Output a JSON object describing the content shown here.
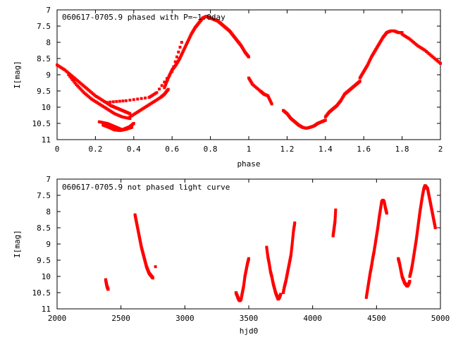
{
  "chart_data": [
    {
      "type": "scatter",
      "title": "060617-0705.9 phased with P=~1.0day",
      "xlabel": "phase",
      "ylabel": "I[mag]",
      "xlim": [
        0,
        2
      ],
      "ylim": [
        11,
        7
      ],
      "y_inverted": true,
      "x_ticks": [
        {
          "value": 0,
          "label": "0"
        },
        {
          "value": 0.2,
          "label": "0.2"
        },
        {
          "value": 0.4,
          "label": "0.4"
        },
        {
          "value": 0.6,
          "label": "0.6"
        },
        {
          "value": 0.8,
          "label": "0.8"
        },
        {
          "value": 1.0,
          "label": "1"
        },
        {
          "value": 1.2,
          "label": "1.2"
        },
        {
          "value": 1.4,
          "label": "1.4"
        },
        {
          "value": 1.6,
          "label": "1.6"
        },
        {
          "value": 1.8,
          "label": "1.8"
        },
        {
          "value": 2.0,
          "label": "2"
        }
      ],
      "y_ticks": [
        {
          "value": 7,
          "label": "7"
        },
        {
          "value": 7.5,
          "label": "7.5"
        },
        {
          "value": 8,
          "label": "8"
        },
        {
          "value": 8.5,
          "label": "8.5"
        },
        {
          "value": 9,
          "label": "9"
        },
        {
          "value": 9.5,
          "label": "9.5"
        },
        {
          "value": 10,
          "label": "10"
        },
        {
          "value": 10.5,
          "label": "10.5"
        },
        {
          "value": 11,
          "label": "11"
        }
      ],
      "color": "#ff0000",
      "series_segments": [
        {
          "x": [
            0.0,
            0.04,
            0.08,
            0.12,
            0.16,
            0.2,
            0.24,
            0.28,
            0.3,
            0.32,
            0.34,
            0.36,
            0.38
          ],
          "y": [
            8.7,
            8.85,
            9.05,
            9.25,
            9.45,
            9.65,
            9.8,
            9.95,
            10.0,
            10.05,
            10.1,
            10.15,
            10.2
          ]
        },
        {
          "x": [
            0.06,
            0.1,
            0.14,
            0.18,
            0.22,
            0.26,
            0.3,
            0.34,
            0.38
          ],
          "y": [
            9.0,
            9.3,
            9.55,
            9.75,
            9.9,
            10.05,
            10.2,
            10.3,
            10.35
          ]
        },
        {
          "x": [
            0.22,
            0.26,
            0.28,
            0.3,
            0.32,
            0.34,
            0.36,
            0.38,
            0.4
          ],
          "y": [
            10.45,
            10.5,
            10.55,
            10.6,
            10.65,
            10.7,
            10.65,
            10.6,
            10.5
          ]
        },
        {
          "x": [
            0.24,
            0.27,
            0.3,
            0.33,
            0.36,
            0.39
          ],
          "y": [
            10.55,
            10.62,
            10.7,
            10.72,
            10.68,
            10.62
          ]
        },
        {
          "x": [
            0.38,
            0.42,
            0.46,
            0.5,
            0.54,
            0.56,
            0.58
          ],
          "y": [
            10.3,
            10.15,
            10.0,
            9.85,
            9.7,
            9.6,
            9.45
          ]
        },
        {
          "x": [
            0.56,
            0.58,
            0.6,
            0.62,
            0.64,
            0.66,
            0.68,
            0.7,
            0.72,
            0.74,
            0.76,
            0.78
          ],
          "y": [
            9.4,
            9.1,
            8.85,
            8.7,
            8.5,
            8.25,
            8.0,
            7.75,
            7.55,
            7.4,
            7.25,
            7.2
          ]
        },
        {
          "x": [
            0.78,
            0.8,
            0.82,
            0.84,
            0.86,
            0.88,
            0.9,
            0.92,
            0.94,
            0.96,
            0.98,
            1.0
          ],
          "y": [
            7.2,
            7.25,
            7.3,
            7.35,
            7.45,
            7.55,
            7.65,
            7.8,
            7.95,
            8.1,
            8.3,
            8.45
          ]
        },
        {
          "x": [
            0.26,
            0.36,
            0.48,
            0.52,
            0.6,
            0.65
          ],
          "y": [
            9.85,
            9.8,
            9.7,
            9.55,
            8.9,
            8.0
          ]
        },
        {
          "x": [
            1.0,
            1.02,
            1.06,
            1.08,
            1.1,
            1.12
          ],
          "y": [
            9.1,
            9.3,
            9.5,
            9.6,
            9.65,
            9.9
          ]
        },
        {
          "x": [
            1.18,
            1.2,
            1.22,
            1.24,
            1.26,
            1.28,
            1.3,
            1.32,
            1.34,
            1.36,
            1.38,
            1.4
          ],
          "y": [
            10.1,
            10.2,
            10.35,
            10.45,
            10.55,
            10.62,
            10.65,
            10.62,
            10.58,
            10.5,
            10.45,
            10.4
          ]
        },
        {
          "x": [
            1.4,
            1.42,
            1.44,
            1.46,
            1.48,
            1.5,
            1.52,
            1.54,
            1.56,
            1.58
          ],
          "y": [
            10.3,
            10.15,
            10.05,
            9.95,
            9.8,
            9.6,
            9.5,
            9.4,
            9.3,
            9.2
          ]
        },
        {
          "x": [
            1.58,
            1.6,
            1.62,
            1.64,
            1.66,
            1.68,
            1.7,
            1.72,
            1.74,
            1.76,
            1.78,
            1.8
          ],
          "y": [
            9.1,
            8.9,
            8.7,
            8.45,
            8.25,
            8.05,
            7.85,
            7.7,
            7.65,
            7.65,
            7.7,
            7.7
          ]
        },
        {
          "x": [
            1.8,
            1.84,
            1.88,
            1.92,
            1.96,
            2.0
          ],
          "y": [
            7.75,
            7.9,
            8.1,
            8.25,
            8.45,
            8.65
          ]
        }
      ]
    },
    {
      "type": "scatter",
      "title": "060617-0705.9 not phased light curve",
      "xlabel": "hjd0",
      "ylabel": "I[mag]",
      "xlim": [
        2000,
        5000
      ],
      "ylim": [
        11,
        7
      ],
      "y_inverted": true,
      "x_ticks": [
        {
          "value": 2000,
          "label": "2000"
        },
        {
          "value": 2500,
          "label": "2500"
        },
        {
          "value": 3000,
          "label": "3000"
        },
        {
          "value": 3500,
          "label": "3500"
        },
        {
          "value": 4000,
          "label": "4000"
        },
        {
          "value": 4500,
          "label": "4500"
        },
        {
          "value": 5000,
          "label": "5000"
        }
      ],
      "y_ticks": [
        {
          "value": 7,
          "label": "7"
        },
        {
          "value": 7.5,
          "label": "7.5"
        },
        {
          "value": 8,
          "label": "8"
        },
        {
          "value": 8.5,
          "label": "8.5"
        },
        {
          "value": 9,
          "label": "9"
        },
        {
          "value": 9.5,
          "label": "9.5"
        },
        {
          "value": 10,
          "label": "10"
        },
        {
          "value": 10.5,
          "label": "10.5"
        },
        {
          "value": 11,
          "label": "11"
        }
      ],
      "color": "#ff0000",
      "series_segments": [
        {
          "x": [
            2380,
            2385,
            2390,
            2395,
            2400
          ],
          "y": [
            10.1,
            10.2,
            10.3,
            10.35,
            10.4
          ]
        },
        {
          "x": [
            2610,
            2620,
            2630,
            2640,
            2650,
            2660,
            2670,
            2680,
            2690,
            2700,
            2710,
            2720,
            2730,
            2740,
            2750
          ],
          "y": [
            8.1,
            8.3,
            8.5,
            8.7,
            8.9,
            9.1,
            9.25,
            9.4,
            9.55,
            9.7,
            9.8,
            9.9,
            9.95,
            10.0,
            10.05
          ]
        },
        {
          "x": [
            2770
          ],
          "y": [
            9.7
          ]
        },
        {
          "x": [
            3400,
            3410,
            3420,
            3430,
            3440,
            3450,
            3460,
            3470,
            3480,
            3490,
            3500
          ],
          "y": [
            10.5,
            10.6,
            10.7,
            10.75,
            10.7,
            10.5,
            10.3,
            10.0,
            9.8,
            9.6,
            9.45
          ]
        },
        {
          "x": [
            3640,
            3650,
            3660,
            3670,
            3680,
            3690,
            3700,
            3710,
            3720,
            3730,
            3740,
            3750
          ],
          "y": [
            9.1,
            9.4,
            9.6,
            9.85,
            10.0,
            10.2,
            10.35,
            10.5,
            10.6,
            10.7,
            10.65,
            10.55
          ]
        },
        {
          "x": [
            3770,
            3780,
            3790,
            3800,
            3810,
            3820,
            3830,
            3840,
            3850,
            3860
          ],
          "y": [
            10.5,
            10.3,
            10.15,
            9.95,
            9.75,
            9.55,
            9.35,
            9.0,
            8.6,
            8.35
          ]
        },
        {
          "x": [
            4160,
            4165,
            4170,
            4175,
            4180
          ],
          "y": [
            8.75,
            8.6,
            8.45,
            8.3,
            7.95
          ]
        },
        {
          "x": [
            4420,
            4430,
            4440,
            4450,
            4460,
            4470,
            4480,
            4490,
            4500,
            4510,
            4520,
            4530,
            4540,
            4550,
            4560,
            4570,
            4580
          ],
          "y": [
            10.65,
            10.4,
            10.15,
            9.9,
            9.7,
            9.45,
            9.25,
            9.0,
            8.75,
            8.5,
            8.2,
            7.95,
            7.7,
            7.65,
            7.7,
            7.9,
            8.05
          ]
        },
        {
          "x": [
            4670,
            4680,
            4690,
            4700,
            4710,
            4720,
            4730,
            4740,
            4750,
            4760
          ],
          "y": [
            9.45,
            9.6,
            9.8,
            10.0,
            10.1,
            10.2,
            10.25,
            10.3,
            10.25,
            10.15
          ]
        },
        {
          "x": [
            4760,
            4770,
            4780,
            4790,
            4800,
            4810,
            4820,
            4830,
            4840,
            4850,
            4860,
            4870,
            4880,
            4890
          ],
          "y": [
            10.0,
            9.85,
            9.65,
            9.4,
            9.15,
            8.9,
            8.6,
            8.3,
            8.0,
            7.75,
            7.5,
            7.3,
            7.2,
            7.25
          ]
        },
        {
          "x": [
            4890,
            4900,
            4910,
            4920,
            4930,
            4940,
            4950,
            4960
          ],
          "y": [
            7.25,
            7.3,
            7.5,
            7.7,
            7.9,
            8.1,
            8.3,
            8.5
          ]
        }
      ]
    }
  ]
}
